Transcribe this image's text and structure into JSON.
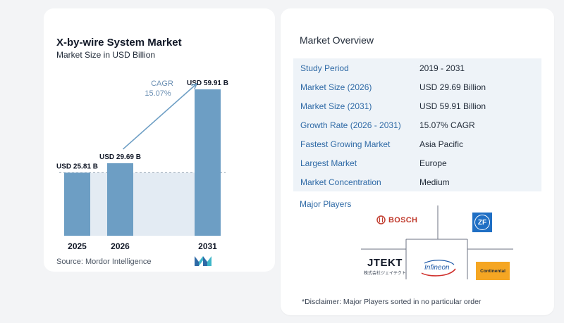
{
  "chart_data": {
    "type": "bar",
    "title": "X-by-wire System Market",
    "subtitle": "Market Size in USD Billion",
    "categories": [
      "2025",
      "2026",
      "2031"
    ],
    "values": [
      25.81,
      29.69,
      59.91
    ],
    "data_labels": [
      "USD 25.81 B",
      "USD 29.69 B",
      "USD 59.91 B"
    ],
    "cagr_label": "CAGR",
    "cagr_value": "15.07%",
    "colors": {
      "bar": "#6d9ec4",
      "baseline_fill": "#e3ebf3",
      "arrow": "#6d9ec4",
      "cagr_text": "#6b8fb3"
    }
  },
  "source": "Source:  Mordor Intelligence",
  "overview": {
    "title": "Market Overview",
    "rows": [
      {
        "label": "Study Period",
        "value": "2019 - 2031"
      },
      {
        "label": "Market Size (2026)",
        "value": "USD 29.69 Billion"
      },
      {
        "label": "Market Size (2031)",
        "value": "USD 59.91 Billion"
      },
      {
        "label": "Growth Rate (2026 - 2031)",
        "value": "15.07% CAGR"
      },
      {
        "label": "Fastest Growing Market",
        "value": "Asia Pacific"
      },
      {
        "label": "Largest Market",
        "value": "Europe"
      },
      {
        "label": "Market Concentration",
        "value": "Medium"
      }
    ]
  },
  "players": {
    "title": "Major Players",
    "bosch": "BOSCH",
    "zf": "ZF",
    "jtekt": "JTEKT",
    "jtekt_sub": "株式会社ジェイテクト",
    "infineon": "Infineon",
    "continental": "Continental"
  },
  "disclaimer": "*Disclaimer: Major Players sorted in no particular order"
}
